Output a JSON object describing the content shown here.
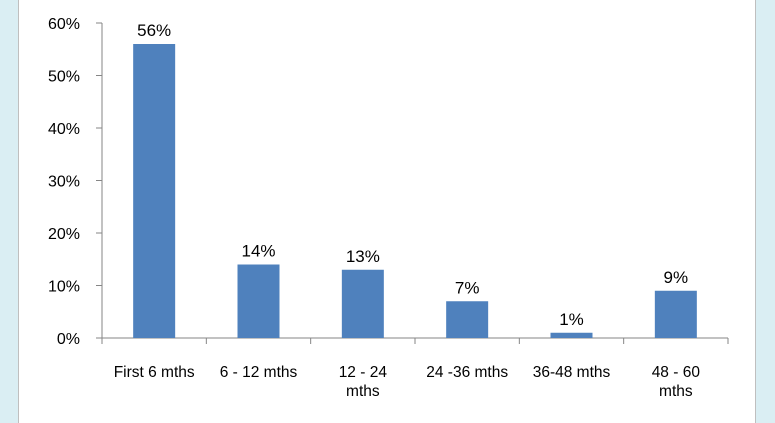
{
  "chart_data": {
    "type": "bar",
    "categories": [
      [
        "First 6 mths"
      ],
      [
        "6 - 12 mths"
      ],
      [
        "12 - 24",
        "mths"
      ],
      [
        "24 -36 mths"
      ],
      [
        "36-48 mths"
      ],
      [
        "48 - 60",
        "mths"
      ]
    ],
    "values": [
      56,
      14,
      13,
      7,
      1,
      9
    ],
    "data_labels": [
      "56%",
      "14%",
      "13%",
      "7%",
      "1%",
      "9%"
    ],
    "y_ticks": [
      "0%",
      "10%",
      "20%",
      "30%",
      "40%",
      "50%",
      "60%"
    ],
    "ylim": [
      0,
      60
    ],
    "title": "",
    "xlabel": "",
    "ylabel": "",
    "grid": false,
    "bar_color": "#4f81bd"
  }
}
